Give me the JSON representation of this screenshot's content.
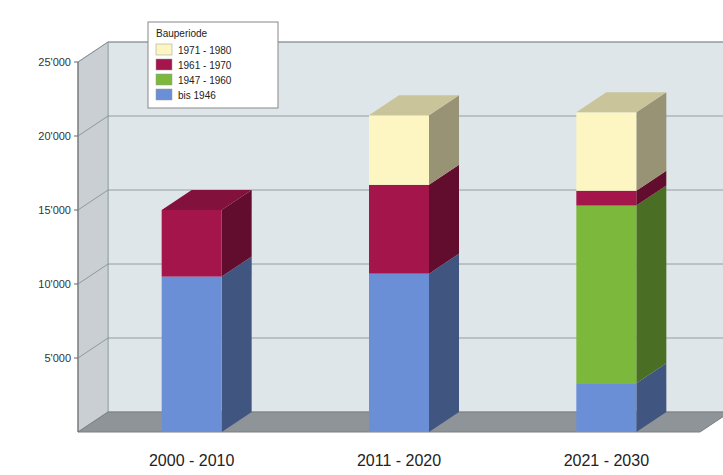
{
  "chart_data": {
    "type": "bar",
    "stacked": true,
    "grid": true,
    "legend": "top-left",
    "legend_title": "Bauperiode",
    "categories": [
      "2000 - 2010",
      "2011 - 2020",
      "2021 - 2030"
    ],
    "series": [
      {
        "name": "bis 1946",
        "color": "#6b8fd6",
        "values": [
          10500,
          10700,
          3300
        ]
      },
      {
        "name": "1947 - 1960",
        "color": "#7cb83c",
        "values": [
          0,
          0,
          12000
        ]
      },
      {
        "name": "1961 - 1970",
        "color": "#a3154b",
        "values": [
          4500,
          6000,
          1000
        ]
      },
      {
        "name": "1971 - 1980",
        "color": "#fdf5c2",
        "values": [
          0,
          4700,
          5300
        ]
      }
    ],
    "ylim": [
      0,
      25000
    ],
    "yticks": [
      {
        "value": 5000,
        "label": "5'000"
      },
      {
        "value": 10000,
        "label": "10'000"
      },
      {
        "value": 15000,
        "label": "15'000"
      },
      {
        "value": 20000,
        "label": "20'000"
      },
      {
        "value": 25000,
        "label": "25'000"
      }
    ]
  }
}
